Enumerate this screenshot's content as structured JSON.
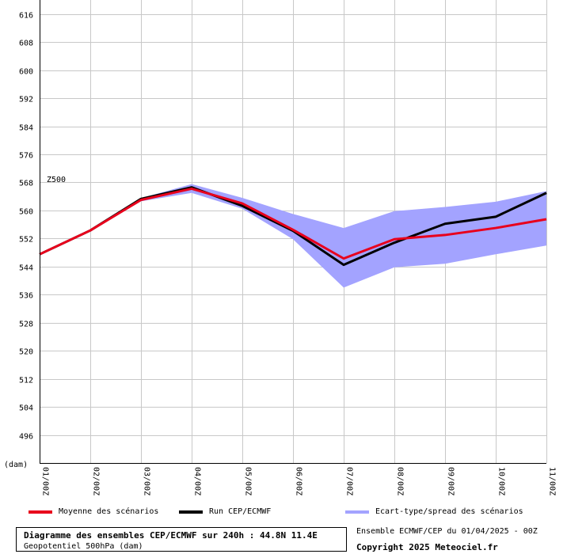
{
  "chart_data": {
    "type": "line",
    "title": "Diagramme des ensembles CEP/ECMWF sur 240h : 44.8N 11.4E",
    "subtitle": "Geopotentiel 500hPa (dam)",
    "ylabel": "(dam)",
    "series_label": "Z500",
    "ylim": [
      488,
      620
    ],
    "yticks": [
      496,
      504,
      512,
      520,
      528,
      536,
      544,
      552,
      560,
      568,
      576,
      584,
      592,
      600,
      608,
      616
    ],
    "categories": [
      "01/00Z",
      "02/00Z",
      "03/00Z",
      "04/00Z",
      "05/00Z",
      "06/00Z",
      "07/00Z",
      "08/00Z",
      "09/00Z",
      "10/00Z",
      "11/00Z"
    ],
    "series": [
      {
        "name": "Moyenne des scénarios",
        "color": "#e8001c",
        "values": [
          547.5,
          554.3,
          563.0,
          566.2,
          562.0,
          554.5,
          546.3,
          551.8,
          553.0,
          555.0,
          557.5
        ]
      },
      {
        "name": "Run CEP/ECMWF",
        "color": "#000000",
        "values": [
          547.5,
          554.3,
          563.3,
          566.6,
          561.3,
          554.2,
          544.5,
          550.8,
          556.2,
          558.2,
          565.0
        ]
      },
      {
        "name": "Ecart-type/spread des scénarios",
        "color": "#a3a3ff",
        "upper": [
          547.5,
          554.5,
          563.5,
          567.5,
          563.6,
          559.0,
          555.0,
          559.8,
          561.0,
          562.5,
          565.5
        ],
        "lower": [
          547.5,
          554.1,
          562.6,
          565.0,
          560.5,
          551.8,
          538.0,
          543.8,
          544.8,
          547.5,
          550.0
        ]
      }
    ],
    "grid": true,
    "legend_position": "bottom"
  },
  "footer": {
    "title": "Diagramme des ensembles CEP/ECMWF sur 240h : 44.8N 11.4E",
    "subtitle": "Geopotentiel 500hPa (dam)",
    "run_info": "Ensemble ECMWF/CEP du 01/04/2025 - 00Z",
    "copyright": "Copyright 2025 Meteociel.fr"
  }
}
